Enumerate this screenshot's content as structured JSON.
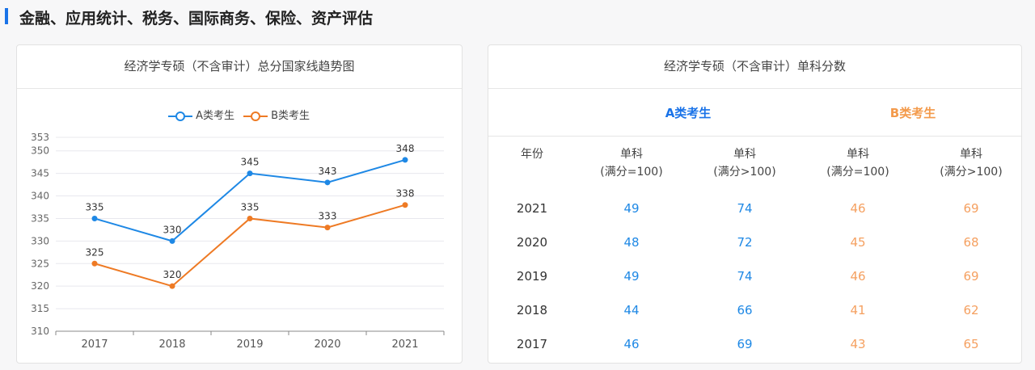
{
  "header": {
    "title": "金融、应用统计、税务、国际商务、保险、资产评估",
    "accent": "#1a73e8"
  },
  "chart_data": {
    "type": "line",
    "title": "经济学专硕（不含审计）总分国家线趋势图",
    "categories": [
      "2017",
      "2018",
      "2019",
      "2020",
      "2021"
    ],
    "series": [
      {
        "name": "A类考生",
        "values": [
          335,
          330,
          345,
          343,
          348
        ],
        "color": "#1e88e5"
      },
      {
        "name": "B类考生",
        "values": [
          325,
          320,
          335,
          333,
          338
        ],
        "color": "#ee7a24"
      }
    ],
    "yticks": [
      310,
      315,
      320,
      325,
      330,
      335,
      340,
      345,
      350,
      353
    ],
    "ylim": [
      310,
      353
    ],
    "grid": true,
    "legend": "top"
  },
  "table": {
    "title": "经济学专硕（不含审计）单科分数",
    "tabs": [
      {
        "label": "A类考生",
        "color": "#1a73e8"
      },
      {
        "label": "B类考生",
        "color": "#f39a4b"
      }
    ],
    "headers": [
      [
        "年份",
        ""
      ],
      [
        "单科",
        "(满分=100)"
      ],
      [
        "单科",
        "(满分>100)"
      ],
      [
        "单科",
        "(满分=100)"
      ],
      [
        "单科",
        "(满分>100)"
      ]
    ],
    "rows": [
      [
        "2021",
        "49",
        "74",
        "46",
        "69"
      ],
      [
        "2020",
        "48",
        "72",
        "45",
        "68"
      ],
      [
        "2019",
        "49",
        "74",
        "46",
        "69"
      ],
      [
        "2018",
        "44",
        "66",
        "41",
        "62"
      ],
      [
        "2017",
        "46",
        "69",
        "43",
        "65"
      ]
    ]
  }
}
